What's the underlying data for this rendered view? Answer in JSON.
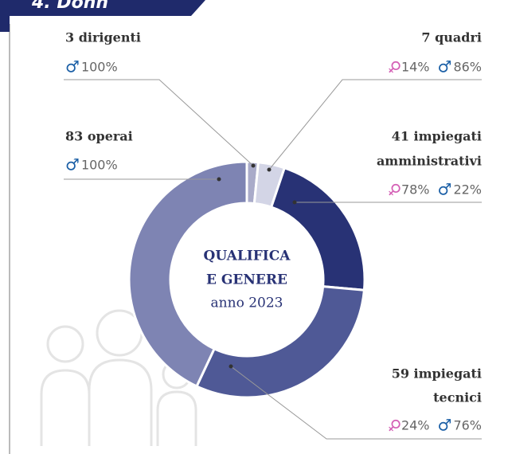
{
  "chart_data": {
    "type": "donut",
    "title": "4. Donn",
    "center_text": [
      "QUALIFICA",
      "E GENERE",
      "anno 2023"
    ],
    "categories": [
      [
        "3 dirigenti"
      ],
      [
        "7 quadri"
      ],
      [
        "41 impiegati",
        "amministrativi"
      ],
      [
        "59 impiegati",
        "tecnici"
      ],
      [
        "83 operai"
      ]
    ],
    "values": [
      3,
      7,
      41,
      59,
      83
    ],
    "colors": [
      "#a9abc9",
      "#d3d5e6",
      "#283275",
      "#4f5996",
      "#7e84b3"
    ],
    "series": [
      {
        "name": "♀",
        "color": "#d45fb5",
        "values": [
          null,
          14,
          78,
          24,
          null
        ],
        "value_labels": [
          null,
          "14%",
          "78%",
          "24%",
          null
        ]
      },
      {
        "name": "♂",
        "color": "#1b5fa6",
        "values": [
          100,
          86,
          22,
          76,
          100
        ],
        "value_labels": [
          "100%",
          "86%",
          "22%",
          "76%",
          "100%"
        ]
      }
    ]
  }
}
